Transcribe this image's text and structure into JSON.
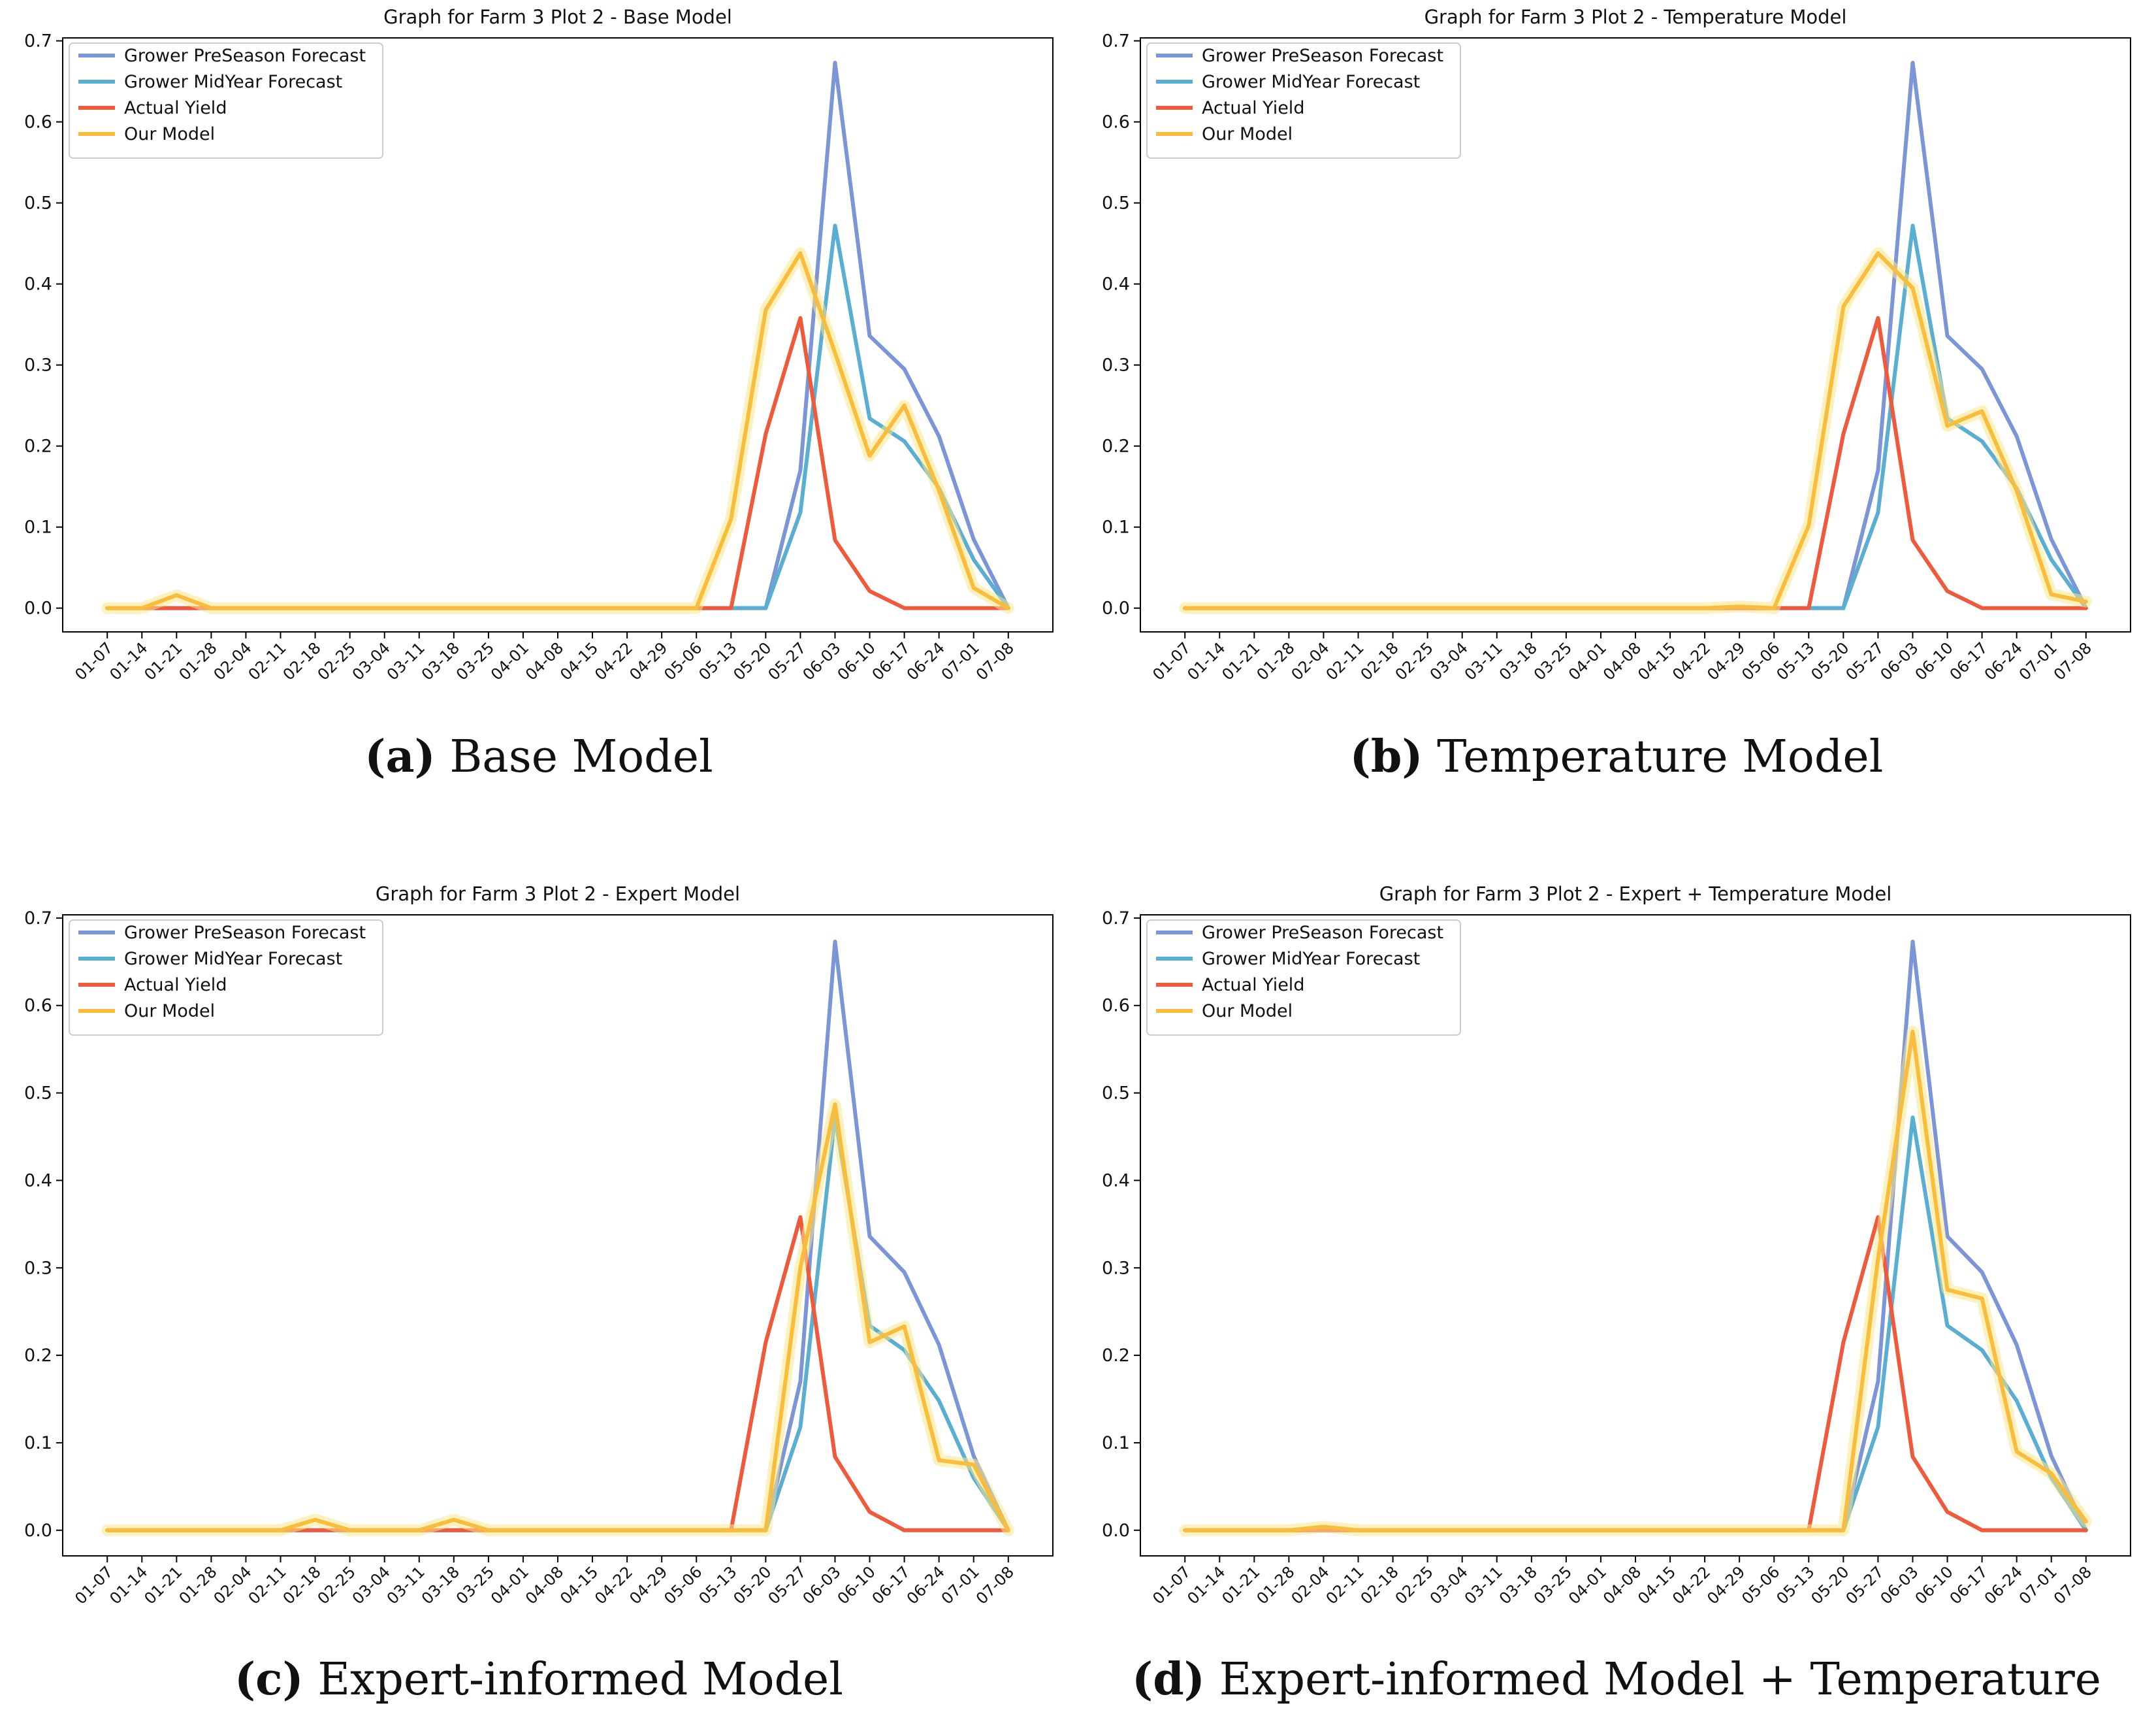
{
  "colors": {
    "preseason": "#7b95d6",
    "midyear": "#5aaed2",
    "actual": "#ef5a3c",
    "model": "#f9bd3b",
    "model_band": "#fbe58a"
  },
  "chart_data": [
    {
      "type": "line",
      "title": "Graph for Farm 3 Plot 2 - Base Model",
      "caption_letter": "(a)",
      "caption_text": " Base Model",
      "ylim": [
        0,
        0.7
      ],
      "yticks": [
        "0.0",
        "0.1",
        "0.2",
        "0.3",
        "0.4",
        "0.5",
        "0.6",
        "0.7"
      ],
      "legend_position": "top-left",
      "categories": [
        "01-07",
        "01-14",
        "01-21",
        "01-28",
        "02-04",
        "02-11",
        "02-18",
        "02-25",
        "03-04",
        "03-11",
        "03-18",
        "03-25",
        "04-01",
        "04-08",
        "04-15",
        "04-22",
        "04-29",
        "05-06",
        "05-13",
        "05-20",
        "05-27",
        "06-03",
        "06-10",
        "06-17",
        "06-24",
        "07-01",
        "07-08"
      ],
      "series": [
        {
          "name": "Grower PreSeason Forecast",
          "key": "preseason",
          "values": [
            0,
            0,
            0,
            0,
            0,
            0,
            0,
            0,
            0,
            0,
            0,
            0,
            0,
            0,
            0,
            0,
            0,
            0,
            0,
            0,
            0.17,
            0.673,
            0.336,
            0.295,
            0.212,
            0.085,
            0
          ]
        },
        {
          "name": "Grower MidYear Forecast",
          "key": "midyear",
          "values": [
            0,
            0,
            0,
            0,
            0,
            0,
            0,
            0,
            0,
            0,
            0,
            0,
            0,
            0,
            0,
            0,
            0,
            0,
            0,
            0,
            0.118,
            0.472,
            0.234,
            0.206,
            0.148,
            0.06,
            0
          ]
        },
        {
          "name": "Actual Yield",
          "key": "actual",
          "values": [
            0,
            0,
            0,
            0,
            0,
            0,
            0,
            0,
            0,
            0,
            0,
            0,
            0,
            0,
            0,
            0,
            0,
            0,
            0,
            0.215,
            0.358,
            0.084,
            0.021,
            0,
            0,
            0,
            0
          ]
        },
        {
          "name": "Our Model",
          "key": "model",
          "values": [
            0,
            0,
            0.016,
            0,
            0,
            0,
            0,
            0,
            0,
            0,
            0,
            0,
            0,
            0,
            0,
            0,
            0,
            0,
            0.11,
            0.368,
            0.438,
            0.315,
            0.188,
            0.25,
            0.145,
            0.025,
            0
          ]
        }
      ]
    },
    {
      "type": "line",
      "title": "Graph for Farm 3 Plot 2 - Temperature Model",
      "caption_letter": "(b)",
      "caption_text": " Temperature Model",
      "ylim": [
        0,
        0.7
      ],
      "yticks": [
        "0.0",
        "0.1",
        "0.2",
        "0.3",
        "0.4",
        "0.5",
        "0.6",
        "0.7"
      ],
      "legend_position": "top-left",
      "categories": [
        "01-07",
        "01-14",
        "01-21",
        "01-28",
        "02-04",
        "02-11",
        "02-18",
        "02-25",
        "03-04",
        "03-11",
        "03-18",
        "03-25",
        "04-01",
        "04-08",
        "04-15",
        "04-22",
        "04-29",
        "05-06",
        "05-13",
        "05-20",
        "05-27",
        "06-03",
        "06-10",
        "06-17",
        "06-24",
        "07-01",
        "07-08"
      ],
      "series": [
        {
          "name": "Grower PreSeason Forecast",
          "key": "preseason",
          "values": [
            0,
            0,
            0,
            0,
            0,
            0,
            0,
            0,
            0,
            0,
            0,
            0,
            0,
            0,
            0,
            0,
            0,
            0,
            0,
            0,
            0.17,
            0.673,
            0.336,
            0.295,
            0.212,
            0.085,
            0
          ]
        },
        {
          "name": "Grower MidYear Forecast",
          "key": "midyear",
          "values": [
            0,
            0,
            0,
            0,
            0,
            0,
            0,
            0,
            0,
            0,
            0,
            0,
            0,
            0,
            0,
            0,
            0,
            0,
            0,
            0,
            0.118,
            0.472,
            0.234,
            0.206,
            0.148,
            0.06,
            0
          ]
        },
        {
          "name": "Actual Yield",
          "key": "actual",
          "values": [
            0,
            0,
            0,
            0,
            0,
            0,
            0,
            0,
            0,
            0,
            0,
            0,
            0,
            0,
            0,
            0,
            0,
            0,
            0,
            0.215,
            0.358,
            0.084,
            0.021,
            0,
            0,
            0,
            0
          ]
        },
        {
          "name": "Our Model",
          "key": "model",
          "values": [
            0,
            0,
            0,
            0,
            0,
            0,
            0,
            0,
            0,
            0,
            0,
            0,
            0,
            0,
            0,
            0,
            0.002,
            0,
            0.102,
            0.372,
            0.438,
            0.395,
            0.225,
            0.243,
            0.145,
            0.017,
            0.008
          ]
        }
      ]
    },
    {
      "type": "line",
      "title": "Graph for Farm 3 Plot 2 - Expert Model",
      "caption_letter": "(c)",
      "caption_text": " Expert-informed Model",
      "ylim": [
        0,
        0.7
      ],
      "yticks": [
        "0.0",
        "0.1",
        "0.2",
        "0.3",
        "0.4",
        "0.5",
        "0.6",
        "0.7"
      ],
      "legend_position": "top-left",
      "categories": [
        "01-07",
        "01-14",
        "01-21",
        "01-28",
        "02-04",
        "02-11",
        "02-18",
        "02-25",
        "03-04",
        "03-11",
        "03-18",
        "03-25",
        "04-01",
        "04-08",
        "04-15",
        "04-22",
        "04-29",
        "05-06",
        "05-13",
        "05-20",
        "05-27",
        "06-03",
        "06-10",
        "06-17",
        "06-24",
        "07-01",
        "07-08"
      ],
      "series": [
        {
          "name": "Grower PreSeason Forecast",
          "key": "preseason",
          "values": [
            0,
            0,
            0,
            0,
            0,
            0,
            0,
            0,
            0,
            0,
            0,
            0,
            0,
            0,
            0,
            0,
            0,
            0,
            0,
            0,
            0.17,
            0.673,
            0.336,
            0.295,
            0.212,
            0.085,
            0
          ]
        },
        {
          "name": "Grower MidYear Forecast",
          "key": "midyear",
          "values": [
            0,
            0,
            0,
            0,
            0,
            0,
            0,
            0,
            0,
            0,
            0,
            0,
            0,
            0,
            0,
            0,
            0,
            0,
            0,
            0,
            0.118,
            0.472,
            0.234,
            0.206,
            0.148,
            0.06,
            0
          ]
        },
        {
          "name": "Actual Yield",
          "key": "actual",
          "values": [
            0,
            0,
            0,
            0,
            0,
            0,
            0,
            0,
            0,
            0,
            0,
            0,
            0,
            0,
            0,
            0,
            0,
            0,
            0,
            0.215,
            0.358,
            0.084,
            0.021,
            0,
            0,
            0,
            0
          ]
        },
        {
          "name": "Our Model",
          "key": "model",
          "values": [
            0,
            0,
            0,
            0,
            0,
            0,
            0.012,
            0,
            0,
            0,
            0.012,
            0,
            0,
            0,
            0,
            0,
            0,
            0,
            0,
            0,
            0.3,
            0.487,
            0.215,
            0.233,
            0.08,
            0.075,
            0
          ]
        }
      ]
    },
    {
      "type": "line",
      "title": "Graph for Farm 3 Plot 2 - Expert + Temperature Model",
      "caption_letter": "(d)",
      "caption_text": " Expert-informed Model + Temperature",
      "ylim": [
        0,
        0.7
      ],
      "yticks": [
        "0.0",
        "0.1",
        "0.2",
        "0.3",
        "0.4",
        "0.5",
        "0.6",
        "0.7"
      ],
      "legend_position": "top-left",
      "categories": [
        "01-07",
        "01-14",
        "01-21",
        "01-28",
        "02-04",
        "02-11",
        "02-18",
        "02-25",
        "03-04",
        "03-11",
        "03-18",
        "03-25",
        "04-01",
        "04-08",
        "04-15",
        "04-22",
        "04-29",
        "05-06",
        "05-13",
        "05-20",
        "05-27",
        "06-03",
        "06-10",
        "06-17",
        "06-24",
        "07-01",
        "07-08"
      ],
      "series": [
        {
          "name": "Grower PreSeason Forecast",
          "key": "preseason",
          "values": [
            0,
            0,
            0,
            0,
            0,
            0,
            0,
            0,
            0,
            0,
            0,
            0,
            0,
            0,
            0,
            0,
            0,
            0,
            0,
            0,
            0.17,
            0.673,
            0.336,
            0.295,
            0.212,
            0.085,
            0
          ]
        },
        {
          "name": "Grower MidYear Forecast",
          "key": "midyear",
          "values": [
            0,
            0,
            0,
            0,
            0,
            0,
            0,
            0,
            0,
            0,
            0,
            0,
            0,
            0,
            0,
            0,
            0,
            0,
            0,
            0,
            0.118,
            0.472,
            0.234,
            0.206,
            0.148,
            0.06,
            0
          ]
        },
        {
          "name": "Actual Yield",
          "key": "actual",
          "values": [
            0,
            0,
            0,
            0,
            0,
            0,
            0,
            0,
            0,
            0,
            0,
            0,
            0,
            0,
            0,
            0,
            0,
            0,
            0,
            0.215,
            0.358,
            0.084,
            0.021,
            0,
            0,
            0,
            0
          ]
        },
        {
          "name": "Our Model",
          "key": "model",
          "values": [
            0,
            0,
            0,
            0,
            0.004,
            0,
            0,
            0,
            0,
            0,
            0,
            0,
            0,
            0,
            0,
            0,
            0,
            0,
            0,
            0,
            0.31,
            0.57,
            0.275,
            0.265,
            0.09,
            0.065,
            0.01
          ]
        }
      ]
    }
  ]
}
